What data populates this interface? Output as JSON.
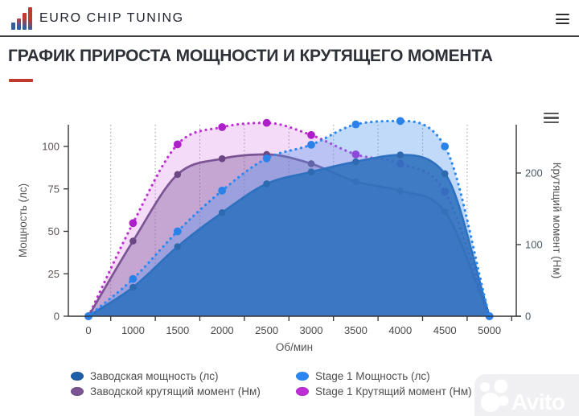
{
  "header": {
    "brand": "EURO CHIP TUNING"
  },
  "page": {
    "title": "ГРАФИК ПРИРОСТА МОЩНОСТИ И КРУТЯЩЕГО МОМЕНТА",
    "accent_color": "#c0392b"
  },
  "watermark": {
    "text": "Avito"
  },
  "chart_data": {
    "type": "line",
    "categories": [
      "0",
      "1000",
      "1500",
      "2000",
      "2500",
      "3000",
      "3500",
      "4000",
      "4500",
      "5000"
    ],
    "xlabel": "Об/мин",
    "left_axis": {
      "label": "Мощность (лс)",
      "ticks": [
        0,
        25,
        50,
        75,
        100
      ],
      "max": 113
    },
    "right_axis": {
      "label": "Крутящий момент (Нм)",
      "ticks": [
        0,
        100,
        200
      ],
      "max": 267
    },
    "grid": "vertical-dotted",
    "legend_position": "bottom",
    "draw_order": [
      3,
      2,
      0,
      1
    ],
    "series": [
      {
        "name": "Заводская мощность (лс)",
        "axis": "left",
        "line_style": "solid",
        "color": "#1d5fa9",
        "marker_color": "#1b548f",
        "fill": "rgba(27,94,165,0.88)",
        "values": [
          0,
          17,
          41,
          61,
          78,
          85,
          91,
          95,
          84,
          0
        ]
      },
      {
        "name": "Stage 1 Мощность (лс)",
        "axis": "left",
        "line_style": "dotted",
        "color": "#2b87f2",
        "marker_color": "#2a82e8",
        "fill": "rgba(80,150,238,0.35)",
        "values": [
          0,
          22,
          50,
          74,
          93,
          101,
          113,
          115,
          100,
          0
        ]
      },
      {
        "name": "Заводской крутящий момент (Нм)",
        "axis": "right",
        "line_style": "solid",
        "color": "#7b5494",
        "marker_color": "#6b4883",
        "fill": "rgba(122,80,150,0.38)",
        "values": [
          0,
          105,
          198,
          220,
          226,
          213,
          188,
          175,
          146,
          0
        ]
      },
      {
        "name": "Stage 1 Крутящий момент (Нм)",
        "axis": "right",
        "line_style": "dotted",
        "color": "#bf2ed4",
        "marker_color": "#ad1fc9",
        "fill": "rgba(210,110,225,0.24)",
        "values": [
          0,
          130,
          240,
          264,
          270,
          253,
          226,
          213,
          174,
          0
        ]
      }
    ]
  }
}
